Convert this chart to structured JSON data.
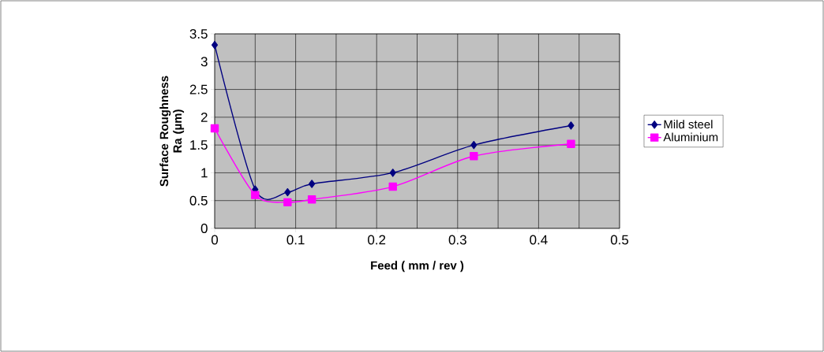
{
  "chart_data": {
    "type": "line",
    "xlabel": "Feed ( mm / rev )",
    "ylabel": "Surface Roughness Ra (µm)",
    "x": [
      0,
      0.05,
      0.09,
      0.12,
      0.22,
      0.32,
      0.44
    ],
    "series": [
      {
        "name": "Mild steel",
        "color": "#000080",
        "marker": "diamond",
        "values": [
          3.3,
          0.7,
          0.65,
          0.8,
          1.0,
          1.5,
          1.85
        ]
      },
      {
        "name": "Aluminium",
        "color": "#ff00ff",
        "marker": "square",
        "values": [
          1.8,
          0.6,
          0.47,
          0.52,
          0.75,
          1.3,
          1.52
        ]
      }
    ],
    "xlim": [
      0,
      0.5
    ],
    "ylim": [
      0,
      3.5
    ],
    "xticks": [
      0,
      0.1,
      0.2,
      0.3,
      0.4,
      0.5
    ],
    "yticks": [
      0,
      0.5,
      1,
      1.5,
      2,
      2.5,
      3,
      3.5
    ],
    "grid": true,
    "legend": "right"
  }
}
